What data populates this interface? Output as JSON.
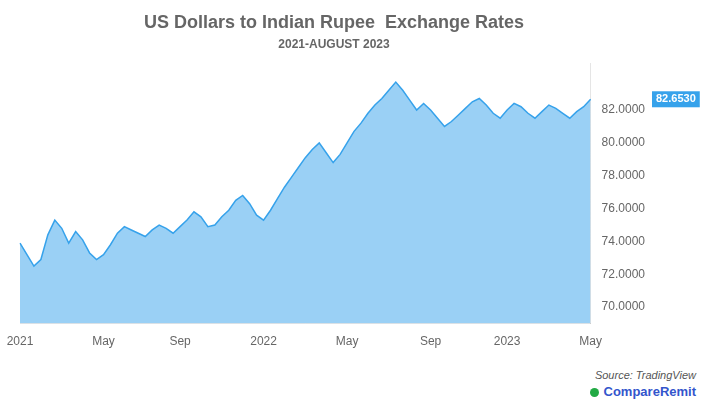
{
  "chart_data": {
    "type": "area",
    "title": "US Dollars to Indian Rupee  Exchange Rates",
    "subtitle": "2021-AUGUST 2023",
    "categories": [
      "2021",
      null,
      null,
      null,
      null,
      null,
      null,
      null,
      null,
      null,
      null,
      null,
      "May",
      null,
      null,
      null,
      null,
      null,
      null,
      null,
      null,
      null,
      null,
      "Sep",
      null,
      null,
      null,
      null,
      null,
      null,
      null,
      null,
      null,
      null,
      null,
      "2022",
      null,
      null,
      null,
      null,
      null,
      null,
      null,
      null,
      null,
      null,
      null,
      "May",
      null,
      null,
      null,
      null,
      null,
      null,
      null,
      null,
      null,
      null,
      null,
      "Sep",
      null,
      null,
      null,
      null,
      null,
      null,
      null,
      null,
      null,
      null,
      "2023",
      null,
      null,
      null,
      null,
      null,
      null,
      null,
      null,
      null,
      null,
      null,
      "May"
    ],
    "values": [
      73.9,
      73.2,
      72.5,
      72.9,
      74.4,
      75.3,
      74.8,
      73.9,
      74.6,
      74.1,
      73.3,
      72.9,
      73.2,
      73.8,
      74.5,
      74.9,
      74.7,
      74.5,
      74.3,
      74.7,
      75.0,
      74.8,
      74.5,
      74.9,
      75.3,
      75.8,
      75.5,
      74.9,
      75.0,
      75.5,
      75.9,
      76.5,
      76.8,
      76.3,
      75.6,
      75.3,
      75.9,
      76.6,
      77.3,
      77.9,
      78.5,
      79.1,
      79.6,
      80.0,
      79.4,
      78.8,
      79.3,
      80.0,
      80.7,
      81.2,
      81.8,
      82.3,
      82.7,
      83.2,
      83.7,
      83.2,
      82.6,
      82.0,
      82.4,
      82.0,
      81.5,
      81.0,
      81.3,
      81.7,
      82.1,
      82.5,
      82.7,
      82.3,
      81.8,
      81.5,
      82.0,
      82.4,
      82.2,
      81.8,
      81.5,
      81.9,
      82.3,
      82.1,
      81.8,
      81.5,
      81.9,
      82.2,
      82.653
    ],
    "ylim": [
      69.0,
      84.8
    ],
    "yticks": [
      {
        "value": 70.0,
        "label": "70.0000"
      },
      {
        "value": 72.0,
        "label": "72.0000"
      },
      {
        "value": 74.0,
        "label": "74.0000"
      },
      {
        "value": 76.0,
        "label": "76.0000"
      },
      {
        "value": 78.0,
        "label": "78.0000"
      },
      {
        "value": 80.0,
        "label": "80.0000"
      },
      {
        "value": 82.0,
        "label": "82.0000"
      }
    ],
    "grid": false,
    "annotations": [
      {
        "text": "82.6530",
        "value": 82.653
      },
      {
        "text": "Source: TradingView"
      },
      {
        "text": "CompareRemit"
      }
    ]
  }
}
